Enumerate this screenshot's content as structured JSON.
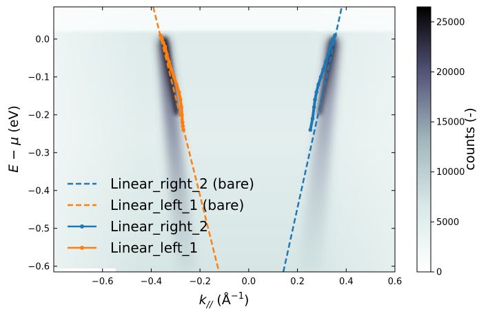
{
  "chart_data": {
    "type": "heatmap",
    "xlabel": "k",
    "xlabel_sub": "//",
    "xlabel_unit_open": " (Å",
    "xlabel_unit_sup": "−1",
    "xlabel_unit_close": ")",
    "ylabel_main": "E",
    "ylabel_minus": " − ",
    "ylabel_mu": "μ",
    "ylabel_unit": " (eV)",
    "xlim": [
      -0.8,
      0.6
    ],
    "ylim": [
      -0.615,
      0.085
    ],
    "x_ticks": [
      -0.6,
      -0.4,
      -0.2,
      0.0,
      0.2,
      0.4,
      0.6
    ],
    "x_tick_labels": [
      "−0.6",
      "−0.4",
      "−0.2",
      "0.0",
      "0.2",
      "0.4",
      "0.6"
    ],
    "y_ticks": [
      0.0,
      -0.1,
      -0.2,
      -0.3,
      -0.4,
      -0.5,
      -0.6
    ],
    "y_tick_labels": [
      "0.0",
      "−0.1",
      "−0.2",
      "−0.3",
      "−0.4",
      "−0.5",
      "−0.6"
    ],
    "colorbar": {
      "label": "counts (-)",
      "range": [
        0,
        26500
      ],
      "ticks": [
        0,
        5000,
        10000,
        15000,
        20000,
        25000
      ],
      "tick_labels": [
        "0",
        "5000",
        "10000",
        "15000",
        "20000",
        "25000"
      ],
      "colormap": "bone_r"
    },
    "grid": false,
    "legend_position": "lower-left",
    "series": [
      {
        "name": "Linear_right_2 (bare)",
        "style": "dashed",
        "color": "#1f77b4",
        "x": [
          0.142,
          0.382
        ],
        "y": [
          -0.615,
          0.085
        ]
      },
      {
        "name": "Linear_left_1 (bare)",
        "style": "dashed",
        "color": "#ff7f0e",
        "x": [
          -0.392,
          -0.122
        ],
        "y": [
          0.085,
          -0.615
        ]
      },
      {
        "name": "Linear_right_2",
        "style": "line-marker",
        "color": "#1f77b4",
        "x": [
          0.253,
          0.262,
          0.268,
          0.272,
          0.278,
          0.286,
          0.296,
          0.306,
          0.316,
          0.326,
          0.336,
          0.346,
          0.354
        ],
        "y": [
          -0.24,
          -0.21,
          -0.18,
          -0.16,
          -0.14,
          -0.12,
          -0.1,
          -0.08,
          -0.06,
          -0.04,
          -0.02,
          0.0,
          0.01
        ]
      },
      {
        "name": "Linear_left_1",
        "style": "line-marker",
        "color": "#ff7f0e",
        "x": [
          -0.362,
          -0.356,
          -0.35,
          -0.343,
          -0.336,
          -0.327,
          -0.318,
          -0.307,
          -0.296,
          -0.286,
          -0.28,
          -0.276,
          -0.274,
          -0.272,
          -0.27,
          -0.268
        ],
        "y": [
          0.01,
          0.0,
          -0.01,
          -0.02,
          -0.04,
          -0.06,
          -0.08,
          -0.1,
          -0.12,
          -0.14,
          -0.16,
          -0.18,
          -0.2,
          -0.22,
          -0.23,
          -0.24
        ]
      }
    ]
  }
}
